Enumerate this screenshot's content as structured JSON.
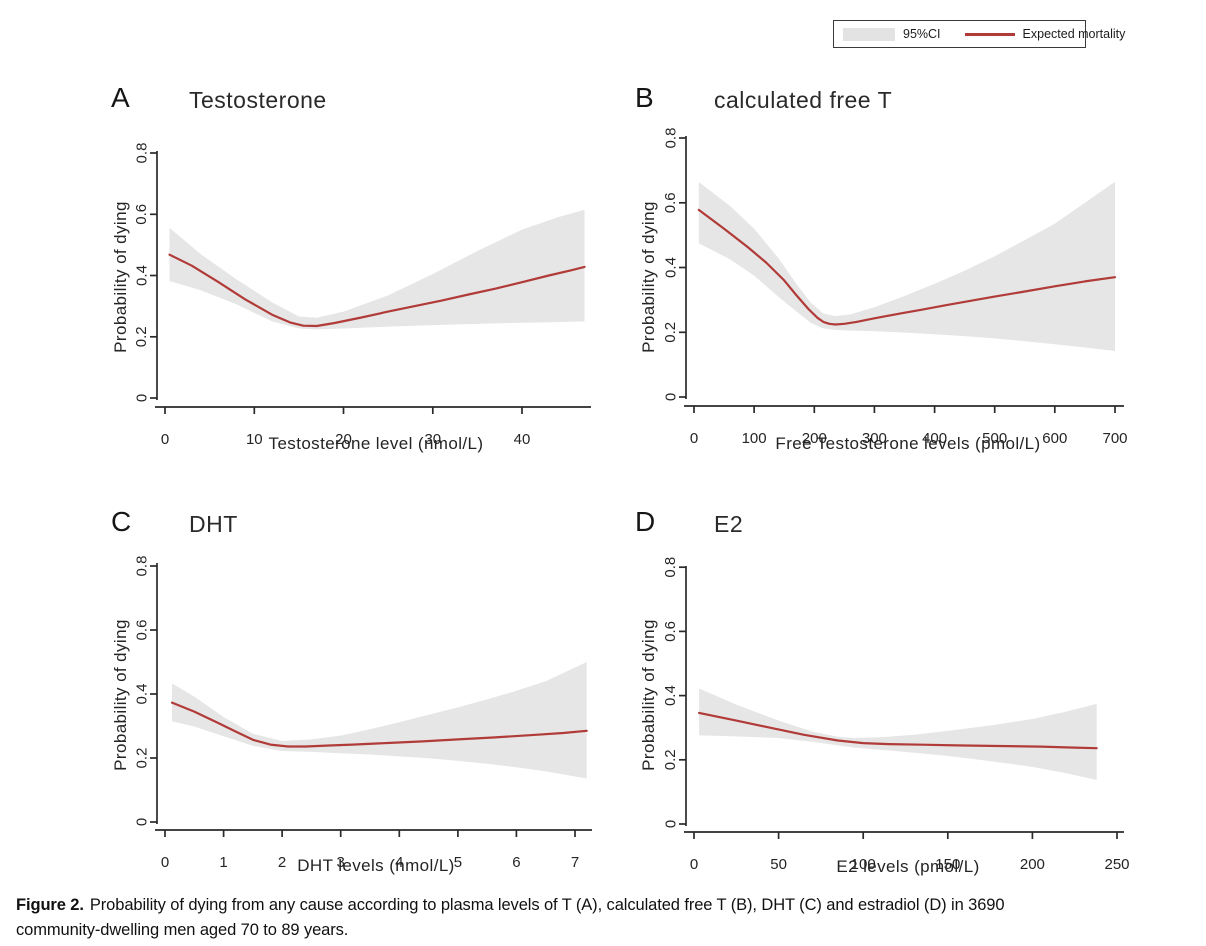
{
  "legend": {
    "ci_label": "95%CI",
    "line_label": "Expected mortality"
  },
  "colors": {
    "mortality_line": "#b03b38",
    "ci_band": "#e6e6e6",
    "axis": "#2a2a2a",
    "legend_swatch": "#e3e3e3"
  },
  "caption": {
    "label": "Figure 2.",
    "line1": "Probability of dying from any cause according to plasma levels of T (A), calculated free T (B), DHT (C) and estradiol (D) in 3690",
    "line2": "community-dwelling men aged 70 to 89 years."
  },
  "chart_data": [
    {
      "type": "line",
      "panel_label": "A",
      "title": "Testosterone",
      "xlabel": "Testosterone level (nmol/L)",
      "ylabel": "Probability of dying",
      "xlim": [
        0,
        47.5
      ],
      "ylim": [
        0,
        0.8
      ],
      "xticks": [
        0,
        10,
        20,
        30,
        40
      ],
      "yticks": [
        "0",
        "0.2",
        "0.4",
        "0.6",
        "0.8"
      ],
      "ytick_values": [
        0,
        0.2,
        0.4,
        0.6,
        0.8
      ],
      "grid": false,
      "series": [
        {
          "name": "Expected mortality",
          "kind": "line",
          "points": [
            [
              0.5,
              0.468
            ],
            [
              3,
              0.432
            ],
            [
              6,
              0.378
            ],
            [
              9,
              0.322
            ],
            [
              12,
              0.272
            ],
            [
              14,
              0.247
            ],
            [
              15.5,
              0.236
            ],
            [
              17,
              0.235
            ],
            [
              19,
              0.245
            ],
            [
              22,
              0.263
            ],
            [
              25,
              0.282
            ],
            [
              28,
              0.3
            ],
            [
              31,
              0.318
            ],
            [
              34,
              0.338
            ],
            [
              37,
              0.357
            ],
            [
              40,
              0.378
            ],
            [
              43,
              0.4
            ],
            [
              45.5,
              0.417
            ],
            [
              47,
              0.428
            ]
          ]
        },
        {
          "name": "95%CI",
          "kind": "band",
          "upper": [
            [
              0.5,
              0.556
            ],
            [
              4,
              0.47
            ],
            [
              8,
              0.388
            ],
            [
              12,
              0.312
            ],
            [
              15,
              0.266
            ],
            [
              17,
              0.262
            ],
            [
              20,
              0.282
            ],
            [
              25,
              0.335
            ],
            [
              30,
              0.405
            ],
            [
              35,
              0.48
            ],
            [
              40,
              0.55
            ],
            [
              44,
              0.59
            ],
            [
              47,
              0.615
            ]
          ],
          "lower": [
            [
              0.5,
              0.382
            ],
            [
              4,
              0.352
            ],
            [
              8,
              0.306
            ],
            [
              12,
              0.25
            ],
            [
              15,
              0.227
            ],
            [
              17,
              0.224
            ],
            [
              20,
              0.227
            ],
            [
              25,
              0.233
            ],
            [
              30,
              0.238
            ],
            [
              35,
              0.242
            ],
            [
              40,
              0.246
            ],
            [
              44,
              0.248
            ],
            [
              47,
              0.25
            ]
          ]
        }
      ]
    },
    {
      "type": "line",
      "panel_label": "B",
      "title": "calculated free T",
      "xlabel": "Free Testosterone levels (pmol/L)",
      "ylabel": "Probability of dying",
      "xlim": [
        0,
        715
      ],
      "ylim": [
        0,
        0.8
      ],
      "xticks": [
        0,
        100,
        200,
        300,
        400,
        500,
        600,
        700
      ],
      "yticks": [
        "0",
        "0.2",
        "0.4",
        "0.6",
        "0.8"
      ],
      "ytick_values": [
        0,
        0.2,
        0.4,
        0.6,
        0.8
      ],
      "grid": false,
      "series": [
        {
          "name": "Expected mortality",
          "kind": "line",
          "points": [
            [
              8,
              0.578
            ],
            [
              50,
              0.52
            ],
            [
              90,
              0.462
            ],
            [
              120,
              0.415
            ],
            [
              150,
              0.36
            ],
            [
              170,
              0.315
            ],
            [
              190,
              0.272
            ],
            [
              205,
              0.245
            ],
            [
              215,
              0.232
            ],
            [
              225,
              0.226
            ],
            [
              235,
              0.224
            ],
            [
              250,
              0.226
            ],
            [
              270,
              0.232
            ],
            [
              300,
              0.243
            ],
            [
              340,
              0.257
            ],
            [
              380,
              0.27
            ],
            [
              420,
              0.284
            ],
            [
              460,
              0.297
            ],
            [
              500,
              0.31
            ],
            [
              550,
              0.326
            ],
            [
              600,
              0.342
            ],
            [
              650,
              0.357
            ],
            [
              700,
              0.37
            ]
          ]
        },
        {
          "name": "95%CI",
          "kind": "band",
          "upper": [
            [
              8,
              0.664
            ],
            [
              60,
              0.59
            ],
            [
              100,
              0.52
            ],
            [
              140,
              0.43
            ],
            [
              170,
              0.35
            ],
            [
              195,
              0.29
            ],
            [
              215,
              0.258
            ],
            [
              235,
              0.25
            ],
            [
              260,
              0.255
            ],
            [
              300,
              0.277
            ],
            [
              350,
              0.312
            ],
            [
              400,
              0.35
            ],
            [
              450,
              0.39
            ],
            [
              500,
              0.435
            ],
            [
              550,
              0.485
            ],
            [
              600,
              0.535
            ],
            [
              650,
              0.6
            ],
            [
              700,
              0.665
            ]
          ],
          "lower": [
            [
              8,
              0.475
            ],
            [
              60,
              0.425
            ],
            [
              100,
              0.375
            ],
            [
              140,
              0.31
            ],
            [
              170,
              0.265
            ],
            [
              195,
              0.228
            ],
            [
              215,
              0.212
            ],
            [
              235,
              0.207
            ],
            [
              260,
              0.205
            ],
            [
              300,
              0.203
            ],
            [
              350,
              0.199
            ],
            [
              400,
              0.194
            ],
            [
              450,
              0.188
            ],
            [
              500,
              0.181
            ],
            [
              550,
              0.172
            ],
            [
              600,
              0.163
            ],
            [
              650,
              0.153
            ],
            [
              700,
              0.142
            ]
          ]
        }
      ]
    },
    {
      "type": "line",
      "panel_label": "C",
      "title": "DHT",
      "xlabel": "DHT levels (nmol/L)",
      "ylabel": "Probability of dying",
      "xlim": [
        0,
        7.3
      ],
      "ylim": [
        0,
        0.8
      ],
      "xticks": [
        0,
        1,
        2,
        3,
        4,
        5,
        6,
        7
      ],
      "yticks": [
        "0",
        "0.2",
        "0.4",
        "0.6",
        "0.8"
      ],
      "ytick_values": [
        0,
        0.2,
        0.4,
        0.6,
        0.8
      ],
      "grid": false,
      "series": [
        {
          "name": "Expected mortality",
          "kind": "line",
          "points": [
            [
              0.12,
              0.373
            ],
            [
              0.5,
              0.345
            ],
            [
              0.9,
              0.31
            ],
            [
              1.2,
              0.283
            ],
            [
              1.5,
              0.257
            ],
            [
              1.8,
              0.242
            ],
            [
              2.1,
              0.236
            ],
            [
              2.4,
              0.236
            ],
            [
              2.8,
              0.239
            ],
            [
              3.2,
              0.242
            ],
            [
              3.8,
              0.247
            ],
            [
              4.4,
              0.252
            ],
            [
              5.0,
              0.258
            ],
            [
              5.6,
              0.264
            ],
            [
              6.2,
              0.271
            ],
            [
              6.8,
              0.278
            ],
            [
              7.2,
              0.285
            ]
          ]
        },
        {
          "name": "95%CI",
          "kind": "band",
          "upper": [
            [
              0.12,
              0.433
            ],
            [
              0.5,
              0.392
            ],
            [
              1.0,
              0.328
            ],
            [
              1.5,
              0.276
            ],
            [
              2.0,
              0.253
            ],
            [
              2.5,
              0.258
            ],
            [
              3.0,
              0.27
            ],
            [
              3.5,
              0.29
            ],
            [
              4.0,
              0.312
            ],
            [
              4.5,
              0.335
            ],
            [
              5.0,
              0.358
            ],
            [
              5.5,
              0.383
            ],
            [
              6.0,
              0.41
            ],
            [
              6.5,
              0.44
            ],
            [
              7.2,
              0.5
            ]
          ],
          "lower": [
            [
              0.12,
              0.315
            ],
            [
              0.5,
              0.298
            ],
            [
              1.0,
              0.268
            ],
            [
              1.5,
              0.238
            ],
            [
              2.0,
              0.222
            ],
            [
              2.5,
              0.219
            ],
            [
              3.0,
              0.215
            ],
            [
              3.5,
              0.211
            ],
            [
              4.0,
              0.205
            ],
            [
              4.5,
              0.199
            ],
            [
              5.0,
              0.191
            ],
            [
              5.5,
              0.182
            ],
            [
              6.0,
              0.171
            ],
            [
              6.5,
              0.158
            ],
            [
              7.2,
              0.136
            ]
          ]
        }
      ]
    },
    {
      "type": "line",
      "panel_label": "D",
      "title": "E2",
      "xlabel": "E2 levels (pmol/L)",
      "ylabel": "Probability of dying",
      "xlim": [
        0,
        254
      ],
      "ylim": [
        0,
        0.8
      ],
      "xticks": [
        0,
        50,
        100,
        150,
        200,
        250
      ],
      "yticks": [
        "0",
        "0.2",
        "0.4",
        "0.6",
        "0.8"
      ],
      "ytick_values": [
        0,
        0.2,
        0.4,
        0.6,
        0.8
      ],
      "grid": false,
      "series": [
        {
          "name": "Expected mortality",
          "kind": "line",
          "points": [
            [
              3,
              0.346
            ],
            [
              25,
              0.322
            ],
            [
              45,
              0.3
            ],
            [
              65,
              0.278
            ],
            [
              85,
              0.26
            ],
            [
              100,
              0.252
            ],
            [
              115,
              0.249
            ],
            [
              135,
              0.247
            ],
            [
              155,
              0.245
            ],
            [
              180,
              0.243
            ],
            [
              205,
              0.241
            ],
            [
              225,
              0.238
            ],
            [
              238,
              0.236
            ]
          ]
        },
        {
          "name": "95%CI",
          "kind": "band",
          "upper": [
            [
              3,
              0.422
            ],
            [
              25,
              0.372
            ],
            [
              50,
              0.322
            ],
            [
              70,
              0.288
            ],
            [
              85,
              0.272
            ],
            [
              95,
              0.268
            ],
            [
              110,
              0.27
            ],
            [
              130,
              0.278
            ],
            [
              150,
              0.29
            ],
            [
              175,
              0.307
            ],
            [
              200,
              0.327
            ],
            [
              220,
              0.35
            ],
            [
              238,
              0.374
            ]
          ],
          "lower": [
            [
              3,
              0.276
            ],
            [
              25,
              0.273
            ],
            [
              50,
              0.268
            ],
            [
              70,
              0.256
            ],
            [
              85,
              0.245
            ],
            [
              95,
              0.238
            ],
            [
              110,
              0.231
            ],
            [
              130,
              0.222
            ],
            [
              150,
              0.212
            ],
            [
              175,
              0.196
            ],
            [
              200,
              0.178
            ],
            [
              220,
              0.158
            ],
            [
              238,
              0.137
            ]
          ]
        }
      ]
    }
  ]
}
